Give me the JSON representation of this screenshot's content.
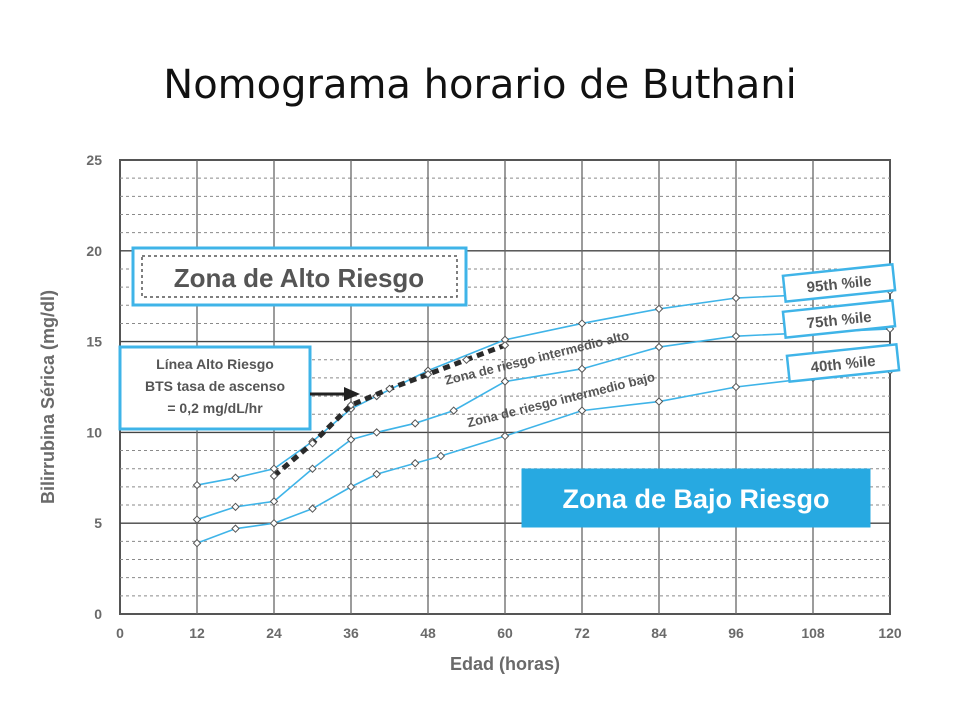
{
  "slide": {
    "title": "Nomograma horario de Buthani"
  },
  "chart_data": {
    "type": "line",
    "xlabel": "Edad (horas)",
    "ylabel": "Bilirrubina Sérica (mg/dl)",
    "xlim": [
      0,
      120
    ],
    "ylim": [
      0,
      25
    ],
    "xticks": [
      0,
      12,
      24,
      36,
      48,
      60,
      72,
      84,
      96,
      108,
      120
    ],
    "yticks": [
      0,
      5,
      10,
      15,
      20,
      25
    ],
    "grid": true,
    "series": [
      {
        "name": "95th %ile",
        "color": "#3fb4e8",
        "x": [
          12,
          18,
          24,
          30,
          36,
          40,
          48,
          60,
          72,
          84,
          96,
          108,
          120
        ],
        "y": [
          7.1,
          7.5,
          8.0,
          9.5,
          11.3,
          12.0,
          13.4,
          15.1,
          16.0,
          16.8,
          17.4,
          17.6,
          17.8
        ]
      },
      {
        "name": "75th %ile",
        "color": "#3fb4e8",
        "x": [
          12,
          18,
          24,
          30,
          36,
          40,
          46,
          52,
          60,
          72,
          84,
          96,
          108,
          120
        ],
        "y": [
          5.2,
          5.9,
          6.2,
          8.0,
          9.6,
          10.0,
          10.5,
          11.2,
          12.8,
          13.5,
          14.7,
          15.3,
          15.5,
          15.7
        ]
      },
      {
        "name": "40th %ile",
        "color": "#3fb4e8",
        "x": [
          12,
          18,
          24,
          30,
          36,
          40,
          46,
          50,
          60,
          72,
          84,
          96,
          108,
          120
        ],
        "y": [
          3.9,
          4.7,
          5.0,
          5.8,
          7.0,
          7.7,
          8.3,
          8.7,
          9.8,
          11.2,
          11.7,
          12.5,
          13.0,
          13.4
        ]
      },
      {
        "name": "Línea Alto Riesgo",
        "color": "#2a2a2a",
        "dashed": true,
        "x": [
          24,
          30,
          36,
          42,
          48,
          54,
          60
        ],
        "y": [
          7.6,
          9.4,
          11.5,
          12.4,
          13.2,
          14.0,
          14.8
        ]
      }
    ],
    "annotations": {
      "high_zone": "Zona de Alto Riesgo",
      "low_zone": "Zona de Bajo Riesgo",
      "high_risk_line": [
        "Línea Alto Riesgo",
        "BTS tasa de ascenso",
        "= 0,2 mg/dL/hr"
      ],
      "zone_hi_int": "Zona de riesgo intermedio alto",
      "zone_lo_int": "Zona de riesgo intermedio bajo",
      "p95": "95th %ile",
      "p75": "75th %ile",
      "p40": "40th %ile"
    }
  }
}
